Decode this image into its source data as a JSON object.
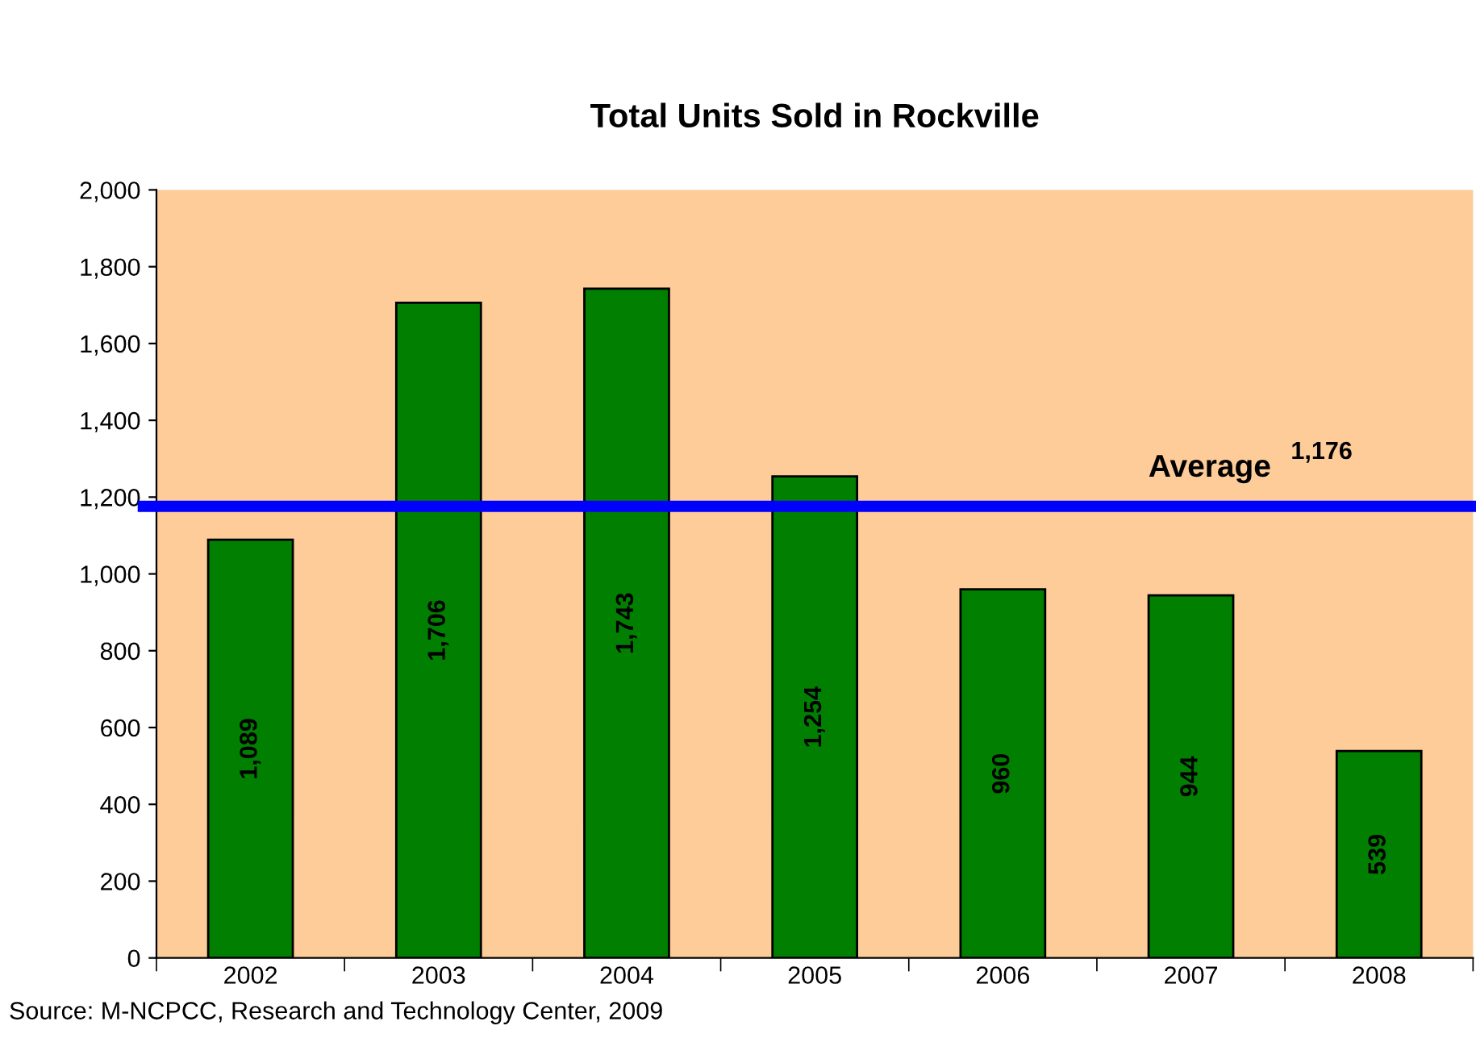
{
  "chart_data": {
    "type": "bar",
    "title": "Total Units Sold in Rockville",
    "categories": [
      "2002",
      "2003",
      "2004",
      "2005",
      "2006",
      "2007",
      "2008"
    ],
    "values": [
      1089,
      1706,
      1743,
      1254,
      960,
      944,
      539
    ],
    "color": "#007f00",
    "ylim": [
      0,
      2000
    ],
    "yticks": [
      {
        "value": 0,
        "label": "0"
      },
      {
        "value": 200,
        "label": "200"
      },
      {
        "value": 400,
        "label": "400"
      },
      {
        "value": 600,
        "label": "600"
      },
      {
        "value": 800,
        "label": "800"
      },
      {
        "value": 1000,
        "label": "1,000"
      },
      {
        "value": 1200,
        "label": "1,200"
      },
      {
        "value": 1400,
        "label": "1,400"
      },
      {
        "value": 1600,
        "label": "1,600"
      },
      {
        "value": 1800,
        "label": "1,800"
      },
      {
        "value": 2000,
        "label": "2,000"
      }
    ],
    "value_labels": [
      "1,089",
      "1,706",
      "1,743",
      "1,254",
      "960",
      "944",
      "539"
    ],
    "ref_lines": [
      {
        "axis": "y",
        "value": 1176,
        "label": "Average",
        "color": "#0000ff"
      }
    ],
    "annotations": [
      {
        "text": "1,176",
        "y": 1176
      },
      "Source: M-NCPCC, Research and Technology Center, 2009"
    ],
    "grid": false,
    "legend": false
  }
}
